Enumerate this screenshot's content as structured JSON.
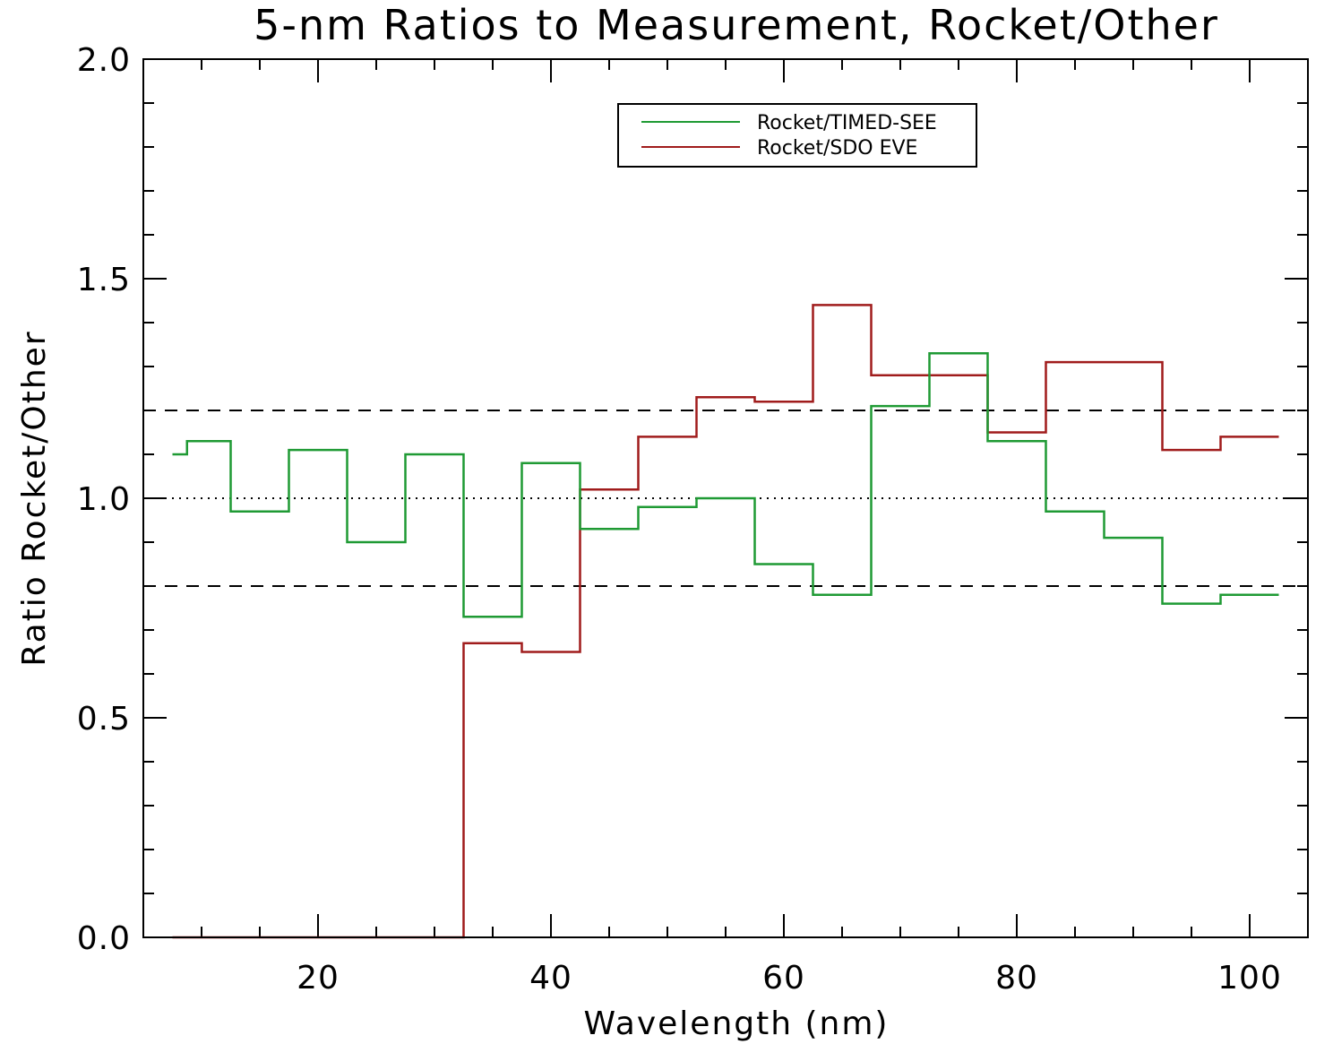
{
  "chart_data": {
    "type": "line",
    "title": "5-nm Ratios to Measurement, Rocket/Other",
    "xlabel": "Wavelength (nm)",
    "ylabel": "Ratio Rocket/Other",
    "xlim": [
      5,
      105
    ],
    "ylim": [
      0,
      2
    ],
    "xticks": [
      20,
      40,
      60,
      80,
      100
    ],
    "xtick_labels": [
      "20",
      "40",
      "60",
      "80",
      "100"
    ],
    "yticks": [
      0,
      0.5,
      1,
      1.5,
      2
    ],
    "ytick_labels": [
      "0.0",
      "0.5",
      "1.0",
      "1.5",
      "2.0"
    ],
    "grid": false,
    "legend_position": "top-center",
    "series": [
      {
        "name": "Rocket/TIMED-SEE",
        "color": "#1f9a34",
        "drawstyle": "steps-mid",
        "x": [
          7.5,
          10,
          15,
          20,
          25,
          30,
          35,
          40,
          45,
          50,
          55,
          60,
          65,
          70,
          75,
          80,
          85,
          90,
          95,
          100,
          102.5
        ],
        "values": [
          1.1,
          1.13,
          0.97,
          1.11,
          0.9,
          1.1,
          0.73,
          1.08,
          0.93,
          0.98,
          1.0,
          0.85,
          0.78,
          1.21,
          1.33,
          1.13,
          0.97,
          0.91,
          0.76,
          0.78,
          0.78
        ]
      },
      {
        "name": "Rocket/SDO EVE",
        "color": "#a01c1c",
        "drawstyle": "steps-mid",
        "x": [
          7.5,
          10,
          15,
          20,
          25,
          30,
          35,
          40,
          45,
          50,
          55,
          60,
          65,
          70,
          75,
          80,
          85,
          90,
          95,
          100,
          102.5
        ],
        "values": [
          0.0,
          0.0,
          0.0,
          0.0,
          0.0,
          0.0,
          0.67,
          0.65,
          1.02,
          1.14,
          1.23,
          1.22,
          1.44,
          1.28,
          1.28,
          1.15,
          1.31,
          1.31,
          1.11,
          1.14,
          1.14
        ]
      }
    ],
    "reference_lines": [
      {
        "y": 1.2,
        "style": "dashed"
      },
      {
        "y": 1.0,
        "style": "dotted"
      },
      {
        "y": 0.8,
        "style": "dashed"
      }
    ]
  }
}
